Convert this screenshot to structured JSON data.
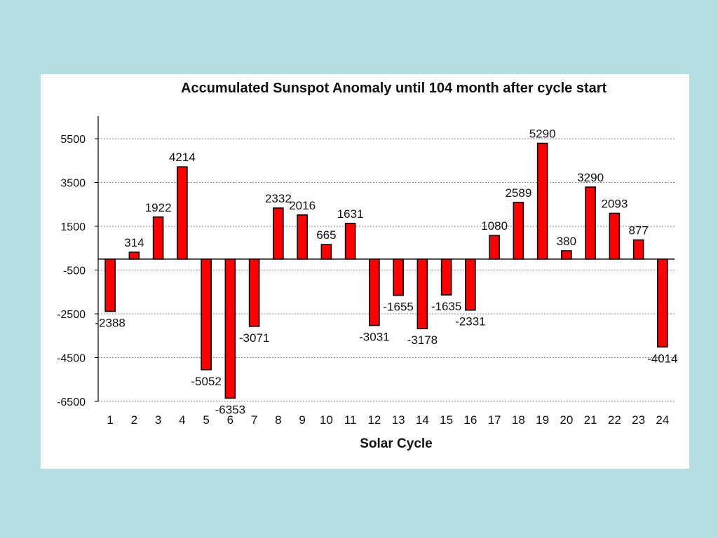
{
  "colors": {
    "background": "#b7dfe3",
    "panel": "#ffffff",
    "bar_fill": "#ff0000",
    "bar_stroke": "#000000",
    "grid": "#888888"
  },
  "chart_data": {
    "type": "bar",
    "title": "Accumulated Sunspot Anomaly until 104 month after cycle start",
    "xlabel": "Solar Cycle",
    "ylabel": "",
    "categories": [
      "1",
      "2",
      "3",
      "4",
      "5",
      "6",
      "7",
      "8",
      "9",
      "10",
      "11",
      "12",
      "13",
      "14",
      "15",
      "16",
      "17",
      "18",
      "19",
      "20",
      "21",
      "22",
      "23",
      "24"
    ],
    "values": [
      -2388,
      314,
      1922,
      4214,
      -5052,
      -6353,
      -3071,
      2332,
      2016,
      665,
      1631,
      -3031,
      -1655,
      -3178,
      -1635,
      -2331,
      1080,
      2589,
      5290,
      380,
      3290,
      2093,
      877,
      -4014
    ],
    "ylim": [
      -6500,
      6500
    ],
    "yticks": [
      5500,
      3500,
      1500,
      -500,
      -2500,
      -4500,
      -6500
    ],
    "grid": true,
    "legend": "none"
  }
}
